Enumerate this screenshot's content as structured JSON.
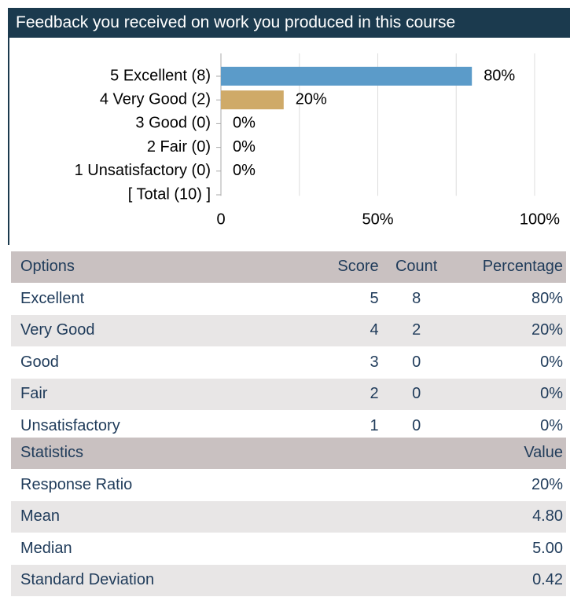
{
  "header": {
    "title": "Feedback you received on work you produced in this course"
  },
  "chart_data": {
    "type": "hbar",
    "categories": [
      "5 Excellent (8)",
      "4 Very Good (2)",
      "3 Good (0)",
      "2 Fair (0)",
      "1 Unsatisfactory (0)",
      "[ Total (10) ]"
    ],
    "values": [
      80,
      20,
      0,
      0,
      0,
      null
    ],
    "value_labels": [
      "80%",
      "20%",
      "0%",
      "0%",
      "0%",
      null
    ],
    "colors": [
      "#5b9bc9",
      "#cfaa68",
      "#5b9bc9",
      "#5b9bc9",
      "#5b9bc9",
      null
    ],
    "xlim": [
      0,
      100
    ],
    "xticks": [
      0,
      {
        "value": 50,
        "label": "50%"
      },
      {
        "value": 100,
        "label": "100%"
      }
    ],
    "grid_lines": [
      25,
      50,
      75,
      100
    ]
  },
  "options_table": {
    "columns": [
      "Options",
      "Score",
      "Count",
      "Percentage"
    ],
    "rows": [
      [
        "Excellent",
        "5",
        "8",
        "80%"
      ],
      [
        "Very Good",
        "4",
        "2",
        "20%"
      ],
      [
        "Good",
        "3",
        "0",
        "0%"
      ],
      [
        "Fair",
        "2",
        "0",
        "0%"
      ],
      [
        "Unsatisfactory",
        "1",
        "0",
        "0%"
      ]
    ]
  },
  "stats_table": {
    "columns": [
      "Statistics",
      "Value"
    ],
    "rows": [
      [
        "Response Ratio",
        "20%"
      ],
      [
        "Mean",
        "4.80"
      ],
      [
        "Median",
        "5.00"
      ],
      [
        "Standard Deviation",
        "0.42"
      ]
    ]
  }
}
